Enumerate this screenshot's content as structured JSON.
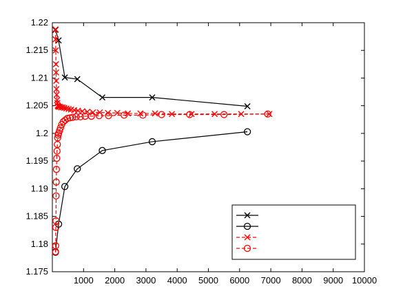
{
  "chart_data": {
    "type": "line",
    "title": "",
    "xlabel": "",
    "ylabel": "",
    "xlim": [
      0,
      10000
    ],
    "ylim": [
      1.175,
      1.22
    ],
    "x_ticks": [
      1000,
      2000,
      3000,
      4000,
      5000,
      6000,
      7000,
      8000,
      9000,
      10000
    ],
    "x_tick_labels": [
      "1000",
      "2000",
      "3000",
      "4000",
      "5000",
      "6000",
      "7000",
      "8000",
      "9000",
      "10000"
    ],
    "y_ticks": [
      1.175,
      1.18,
      1.185,
      1.19,
      1.195,
      1.2,
      1.205,
      1.21,
      1.215,
      1.22
    ],
    "y_tick_labels": [
      "1.175",
      "1.18",
      "1.185",
      "1.19",
      "1.195",
      "1.2",
      "1.205",
      "1.21",
      "1.215",
      "1.22"
    ],
    "grid": false,
    "legend": {
      "position": "bottom-right",
      "entries_have_text": false
    },
    "series": [
      {
        "color": "#000000",
        "line": "solid",
        "marker": "x",
        "x": [
          100,
          200,
          400,
          800,
          1600,
          3200,
          6250
        ],
        "y": [
          1.2187,
          1.2168,
          1.2101,
          1.2098,
          1.2065,
          1.2065,
          1.2049
        ]
      },
      {
        "color": "#000000",
        "line": "solid",
        "marker": "o",
        "x": [
          100,
          200,
          400,
          800,
          1600,
          3200,
          6250
        ],
        "y": [
          1.1786,
          1.1836,
          1.1904,
          1.1936,
          1.1969,
          1.1985,
          1.2003
        ]
      },
      {
        "color": "#ff0000",
        "line": "dashed",
        "marker": "x",
        "x": [
          100,
          105,
          110,
          115,
          120,
          125,
          130,
          140,
          150,
          160,
          170,
          185,
          200,
          240,
          280,
          330,
          380,
          450,
          520,
          600,
          700,
          820,
          960,
          1120,
          1300,
          1520,
          1780,
          2080,
          2420,
          2820,
          3290,
          3830,
          4460,
          5200,
          6050,
          6950
        ],
        "y": [
          1.2188,
          1.217,
          1.215,
          1.2125,
          1.211,
          1.2095,
          1.208,
          1.207,
          1.206,
          1.2055,
          1.205,
          1.2049,
          1.2048,
          1.2048,
          1.2047,
          1.2047,
          1.2046,
          1.2045,
          1.2044,
          1.2043,
          1.2042,
          1.2041,
          1.204,
          1.2039,
          1.2038,
          1.2038,
          1.2037,
          1.2037,
          1.2036,
          1.2036,
          1.2036,
          1.2035,
          1.2035,
          1.2035,
          1.2035,
          1.2035
        ]
      },
      {
        "color": "#ff0000",
        "line": "dashed",
        "marker": "o",
        "x": [
          100,
          105,
          110,
          115,
          120,
          125,
          130,
          140,
          150,
          160,
          170,
          185,
          200,
          230,
          260,
          300,
          350,
          410,
          480,
          560,
          650,
          760,
          900,
          1050,
          1250,
          1500,
          1800,
          2300,
          2900,
          3500,
          4400,
          5500,
          6900
        ],
        "y": [
          1.1785,
          1.1797,
          1.183,
          1.1842,
          1.1887,
          1.1912,
          1.1935,
          1.1955,
          1.1968,
          1.198,
          1.1992,
          1.1997,
          1.2,
          1.2005,
          1.201,
          1.2016,
          1.2021,
          1.2024,
          1.2027,
          1.2028,
          1.2029,
          1.203,
          1.203,
          1.2031,
          1.2031,
          1.2032,
          1.2032,
          1.2033,
          1.2033,
          1.2034,
          1.2034,
          1.2034,
          1.2035
        ]
      }
    ]
  }
}
